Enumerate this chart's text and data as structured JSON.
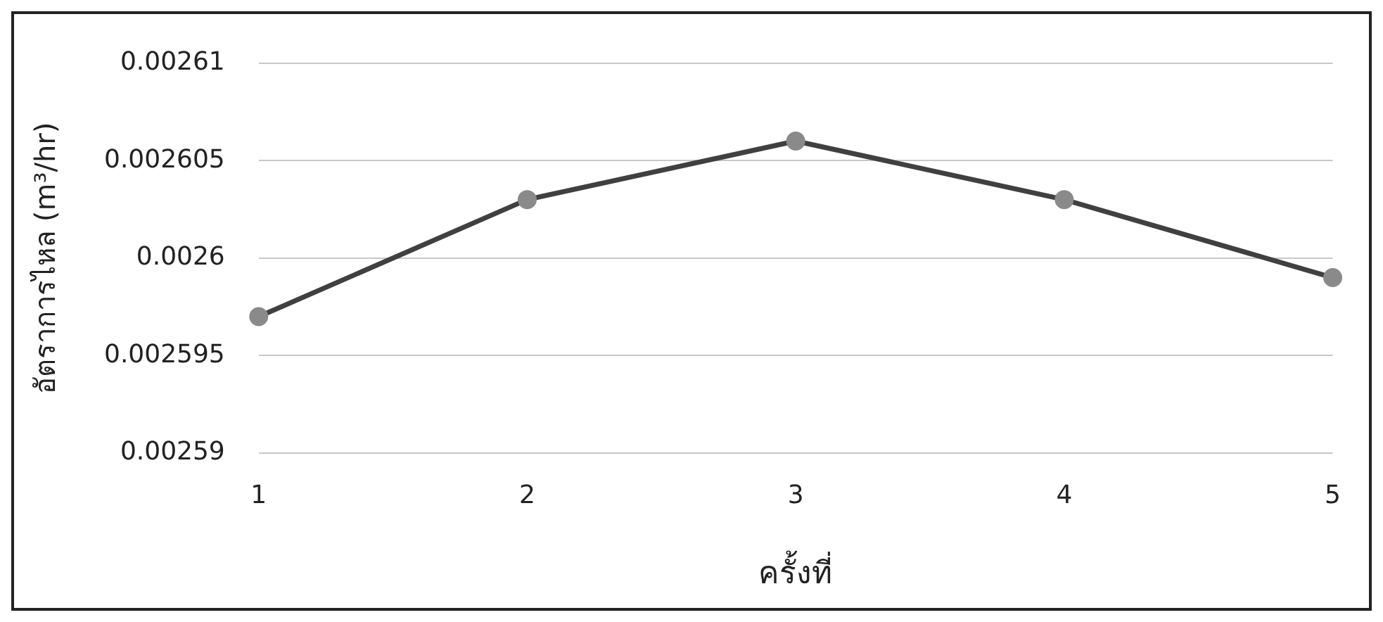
{
  "chart_data": {
    "type": "line",
    "xlabel": "ครั้งที่",
    "ylabel": "อัตราการไหล (m³/hr)",
    "categories": [
      "1",
      "2",
      "3",
      "4",
      "5"
    ],
    "series": [
      {
        "color": "#404040",
        "values": [
          0.002597,
          0.002603,
          0.002606,
          0.002603,
          0.002599
        ]
      }
    ],
    "ylim": [
      0.00259,
      0.00261
    ],
    "yticks": [
      0.00259,
      0.002595,
      0.0026,
      0.002605,
      0.00261
    ],
    "grid": "y",
    "marker": "circle",
    "line_style": "solid",
    "legend": false
  }
}
